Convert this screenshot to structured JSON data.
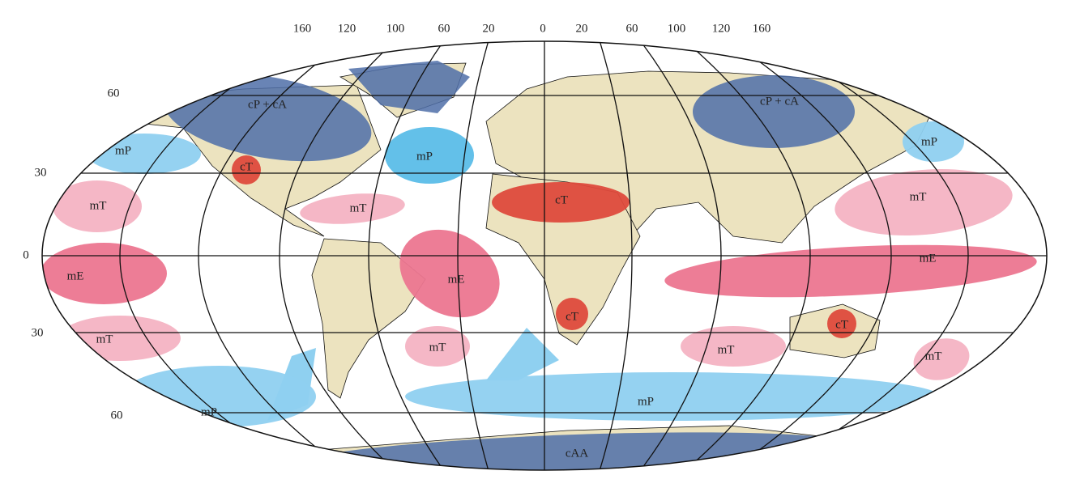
{
  "longitude_labels": [
    "160",
    "120",
    "100",
    "60",
    "20",
    "0",
    "20",
    "60",
    "100",
    "120",
    "160"
  ],
  "latitude_labels": [
    "60",
    "30",
    "0",
    "30",
    "60"
  ],
  "air_masses": [
    "cP + cA",
    "mP",
    "cT",
    "mP",
    "cP + cA",
    "mP",
    "mT",
    "mT",
    "cT",
    "mT",
    "mE",
    "mE",
    "mE",
    "cT",
    "cT",
    "mT",
    "mT",
    "mT",
    "mT",
    "mP",
    "mP",
    "cAA"
  ]
}
